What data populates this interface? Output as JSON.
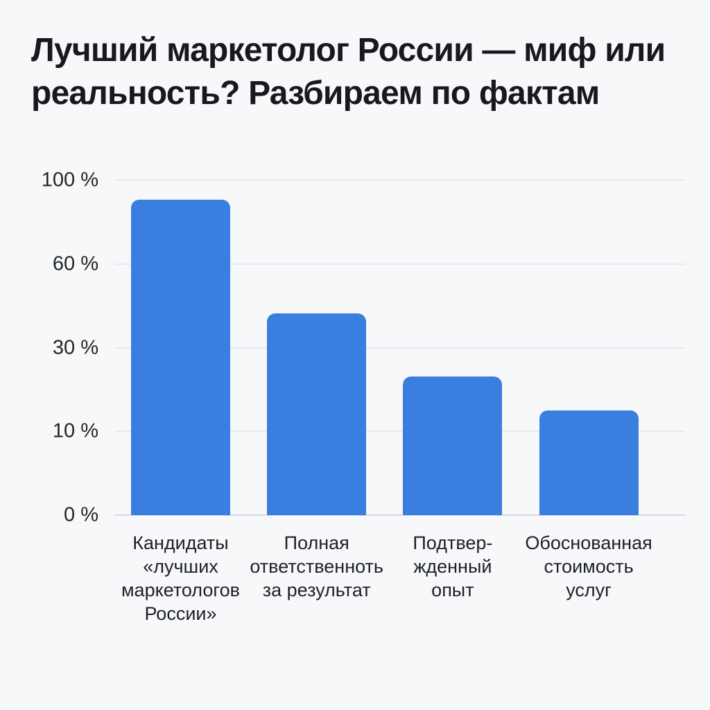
{
  "title": "Лучший маркетолог России — миф или\nреальность? Разбираем по фактам",
  "colors": {
    "background": "#f7f8fa",
    "title_text": "#17191d",
    "axis_text": "#222527",
    "gridline": "#e7e9ed",
    "baseline": "#d9dce1",
    "bar": "#3a7ee0"
  },
  "chart_data": {
    "type": "bar",
    "title": "Лучший маркетолог России — миф или реальность? Разбираем по фактам",
    "categories": [
      "Кандидаты «лучших маркетологов России»",
      "Полная ответственноть за результат",
      "Подтвер- жденный опыт",
      "Обоснованная стоимость услуг"
    ],
    "category_label_lines": [
      [
        "Кандидаты",
        "«лучших",
        "маркетологов",
        "России»"
      ],
      [
        "Полная",
        "ответственноть",
        "за результат"
      ],
      [
        "Подтвер-",
        "жденный",
        "опыт"
      ],
      [
        "Обоснованная",
        "стоимость",
        "услуг"
      ]
    ],
    "values": [
      90,
      41,
      22,
      14
    ],
    "unit": "%",
    "xlabel": "",
    "ylabel": "",
    "ylim": [
      0,
      100
    ],
    "y_ticks": [
      {
        "value": 100,
        "label": "100 %"
      },
      {
        "value": 60,
        "label": "60 %"
      },
      {
        "value": 30,
        "label": "30 %"
      },
      {
        "value": 10,
        "label": "10 %"
      },
      {
        "value": 0,
        "label": "0 %"
      }
    ],
    "scale_note": "non-linear y axis: tick values 0/10/30/60/100 are evenly spaced (v = 5p(p+1))",
    "grid": true,
    "legend": "none",
    "bar_color": "#3a7ee0"
  }
}
